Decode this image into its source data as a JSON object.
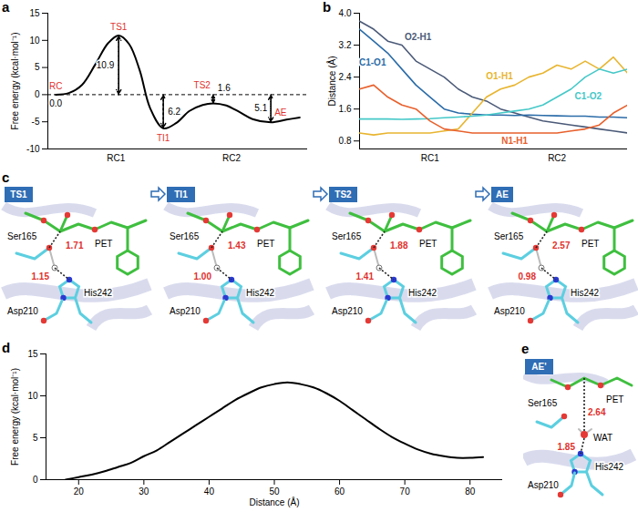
{
  "chart_data": [
    {
      "panel": "a",
      "type": "line",
      "y_label": "Free energy (kcal·mol⁻¹)",
      "x": [
        0,
        0.5,
        1,
        1.5,
        2,
        2.4,
        2.8,
        3.2,
        3.6,
        4.1,
        4.6,
        5.1,
        5.6,
        6,
        6.5,
        7,
        7.5,
        8.2,
        8.8,
        9.3
      ],
      "values": [
        0,
        0.3,
        1.8,
        5.5,
        9.5,
        10.9,
        9.3,
        4.5,
        -2.5,
        -6.2,
        -5.2,
        -3,
        -1.9,
        -1.6,
        -2,
        -3.2,
        -4.5,
        -5.1,
        -4.6,
        -4.2
      ],
      "color": "#000000",
      "xlim": [
        -0.3,
        9.6
      ],
      "xticks": [
        {
          "value": 2.3,
          "label": "RC1"
        },
        {
          "value": 6.7,
          "label": "RC2"
        }
      ],
      "ylim": [
        -10,
        15
      ],
      "yticks": [
        -10,
        -5,
        0,
        5,
        10,
        15
      ],
      "baseline": 0,
      "points": [
        {
          "name": "RC",
          "x": 0,
          "y": 0,
          "value_label": "0.0"
        },
        {
          "name": "TS1",
          "x": 2.4,
          "y": 10.9,
          "value_label": "10.9"
        },
        {
          "name": "TI1",
          "x": 4.1,
          "y": -6.2,
          "value_label": "6.2"
        },
        {
          "name": "TS2",
          "x": 6,
          "y": -1.6,
          "value_label": "1.6"
        },
        {
          "name": "AE",
          "x": 8.2,
          "y": -5.1,
          "value_label": "5.1"
        }
      ]
    },
    {
      "panel": "b",
      "type": "line",
      "y_label": "Distance (Å)",
      "x": [
        0,
        1,
        2,
        3,
        4,
        5,
        6,
        7,
        8,
        9,
        10,
        11,
        12,
        13,
        14,
        15,
        16,
        17,
        18,
        19
      ],
      "series": [
        {
          "name": "O2-H1",
          "color": "#4b5a78",
          "values": [
            3.8,
            3.6,
            3.3,
            3.2,
            2.8,
            2.6,
            2.4,
            2.1,
            1.9,
            1.8,
            1.6,
            1.5,
            1.4,
            1.3,
            1.25,
            1.2,
            1.15,
            1.1,
            1.05,
            1.0
          ]
        },
        {
          "name": "C1-O1",
          "color": "#2b6ca8",
          "values": [
            3.6,
            3.3,
            3.0,
            2.6,
            2.2,
            1.9,
            1.6,
            1.5,
            1.47,
            1.45,
            1.45,
            1.44,
            1.45,
            1.44,
            1.43,
            1.42,
            1.42,
            1.4,
            1.4,
            1.38
          ]
        },
        {
          "name": "O1-H1",
          "color": "#e8b530",
          "values": [
            1.0,
            0.95,
            1.0,
            1.0,
            1.0,
            1.0,
            1.05,
            1.1,
            1.5,
            1.9,
            2.1,
            2.2,
            2.4,
            2.5,
            2.7,
            2.6,
            2.8,
            2.6,
            2.9,
            2.5
          ]
        },
        {
          "name": "C1-O2",
          "color": "#45c8c8",
          "values": [
            1.35,
            1.35,
            1.35,
            1.34,
            1.35,
            1.36,
            1.38,
            1.4,
            1.42,
            1.45,
            1.5,
            1.55,
            1.6,
            1.7,
            1.9,
            2.1,
            2.4,
            2.6,
            2.5,
            2.6
          ]
        },
        {
          "name": "N1-H1",
          "color": "#e8602c",
          "values": [
            2.1,
            2.2,
            1.9,
            1.7,
            1.6,
            1.3,
            1.1,
            1.05,
            1.0,
            1.0,
            1.0,
            1.0,
            1.0,
            1.0,
            1.0,
            1.05,
            1.1,
            1.2,
            1.5,
            1.7
          ]
        }
      ],
      "xlim": [
        0,
        19
      ],
      "xticks": [
        {
          "value": 5,
          "label": "RC1"
        },
        {
          "value": 14,
          "label": "RC2"
        }
      ],
      "ylim": [
        0.6,
        4
      ],
      "yticks": [
        0.8,
        1.6,
        2.4,
        3.2,
        {
          "value": 4,
          "label": "4.0"
        }
      ]
    },
    {
      "panel": "d",
      "type": "line",
      "x_label": "Distance (Å)",
      "y_label": "Free energy (kcal·mol⁻¹)",
      "x": [
        18,
        20,
        22,
        24,
        26,
        28,
        30,
        32,
        34,
        36,
        38,
        40,
        42,
        44,
        46,
        48,
        50,
        52,
        54,
        56,
        58,
        60,
        62,
        64,
        66,
        68,
        70,
        72,
        74,
        76,
        78,
        80,
        82
      ],
      "values": [
        0,
        0.3,
        0.6,
        1.0,
        1.5,
        2.0,
        2.8,
        3.5,
        4.5,
        5.5,
        6.5,
        7.5,
        8.5,
        9.5,
        10.3,
        11,
        11.4,
        11.6,
        11.4,
        11,
        10.3,
        9.4,
        8.3,
        7.2,
        6.1,
        5.1,
        4.3,
        3.6,
        3.1,
        2.8,
        2.6,
        2.6,
        2.7
      ],
      "color": "#000000",
      "xlim": [
        15,
        85
      ],
      "xticks": [
        20,
        30,
        40,
        50,
        60,
        70,
        80
      ],
      "ylim": [
        0,
        15
      ],
      "yticks": [
        0,
        5,
        10,
        15
      ]
    }
  ],
  "structures": [
    {
      "panel": "c",
      "frames": [
        {
          "label": "TS1",
          "residues": {
            "ser": "Ser165",
            "pet": "PET",
            "his": "His242",
            "asp": "Asp210"
          },
          "distances": [
            "1.71",
            "1.15"
          ]
        },
        {
          "label": "TI1",
          "residues": {
            "ser": "Ser165",
            "pet": "PET",
            "his": "His242",
            "asp": "Asp210"
          },
          "distances": [
            "1.43",
            "1.00"
          ]
        },
        {
          "label": "TS2",
          "residues": {
            "ser": "Ser165",
            "pet": "PET",
            "his": "His242",
            "asp": "Asp210"
          },
          "distances": [
            "1.88",
            "1.41"
          ]
        },
        {
          "label": "AE",
          "residues": {
            "ser": "Ser165",
            "pet": "PET",
            "his": "His242",
            "asp": "Asp210"
          },
          "distances": [
            "2.57",
            "0.98"
          ]
        }
      ]
    },
    {
      "panel": "e",
      "frames": [
        {
          "label": "AE'",
          "residues": {
            "ser": "Ser165",
            "pet": "PET",
            "his": "His242",
            "asp": "Asp210",
            "wat": "WAT"
          },
          "distances": [
            "2.64",
            "1.85"
          ]
        }
      ]
    }
  ]
}
